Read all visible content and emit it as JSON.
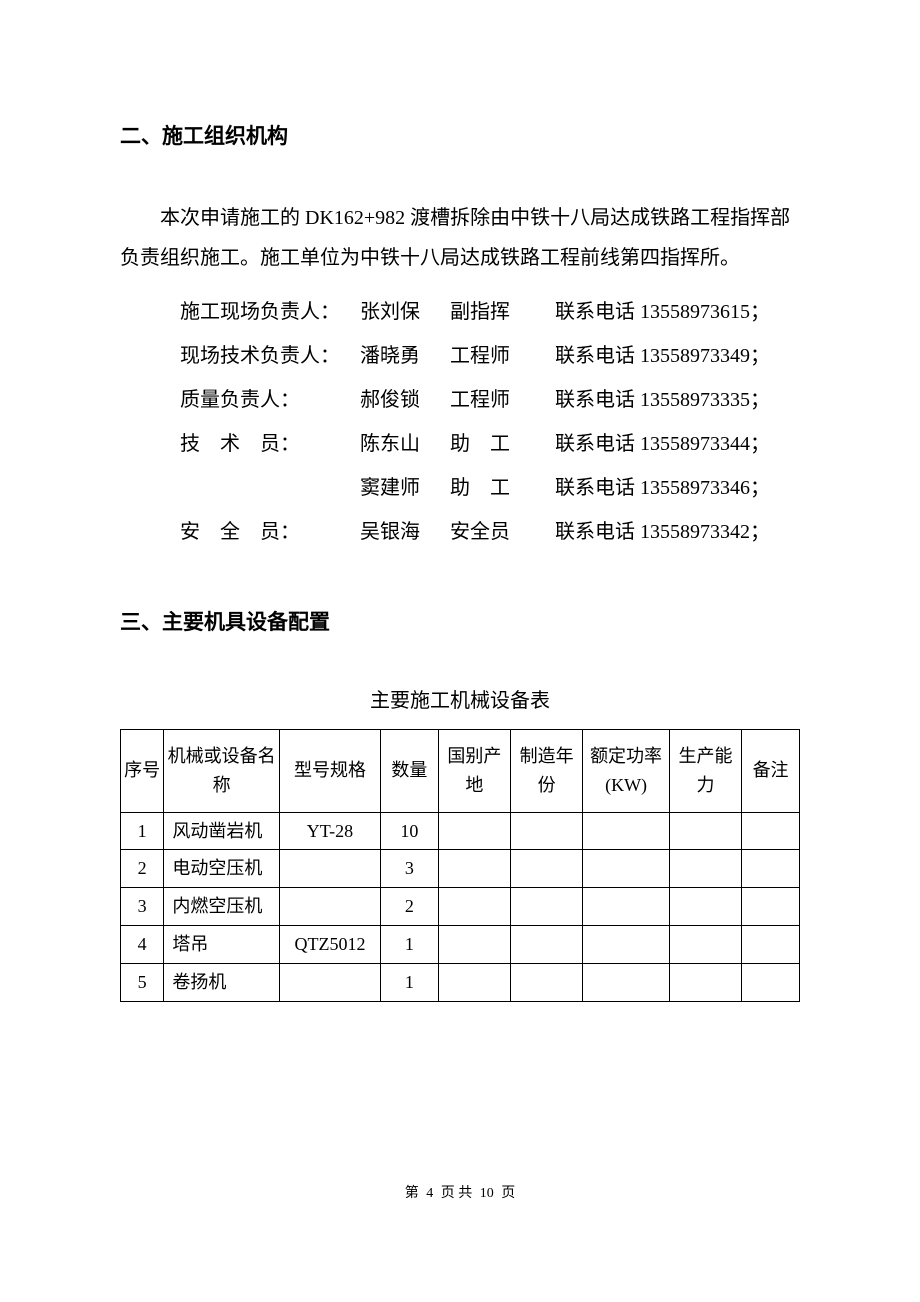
{
  "section2": {
    "heading": "二、施工组织机构",
    "intro": "本次申请施工的 DK162+982 渡槽拆除由中铁十八局达成铁路工程指挥部负责组织施工。施工单位为中铁十八局达成铁路工程前线第四指挥所。",
    "personnel": [
      {
        "role": "施工现场负责人：",
        "name": "张刘保",
        "title": "副指挥",
        "phone": "联系电话 13558973615；"
      },
      {
        "role": "现场技术负责人：",
        "name": "潘晓勇",
        "title": "工程师",
        "phone": "联系电话 13558973349；"
      },
      {
        "role": "质量负责人：",
        "name": "郝俊锁",
        "title": "工程师",
        "phone": "联系电话 13558973335；"
      },
      {
        "role": "技　术　员：",
        "name": "陈东山",
        "title": "助　工",
        "phone": "联系电话 13558973344；"
      },
      {
        "role": "",
        "name": "窦建师",
        "title": "助　工",
        "phone": "联系电话 13558973346；"
      },
      {
        "role": "安　全　员：",
        "name": "吴银海",
        "title": "安全员",
        "phone": "联系电话 13558973342；"
      }
    ]
  },
  "section3": {
    "heading": "三、主要机具设备配置",
    "table_title": "主要施工机械设备表",
    "columns": {
      "seq": "序号",
      "name": "机械或设备名称",
      "model": "型号规格",
      "qty": "数量",
      "origin": "国别产地",
      "year": "制造年份",
      "power": "额定功率(KW)",
      "capacity": "生产能力",
      "remark": "备注"
    },
    "rows": [
      {
        "seq": "1",
        "name": "风动凿岩机",
        "model": "YT-28",
        "qty": "10",
        "origin": "",
        "year": "",
        "power": "",
        "capacity": "",
        "remark": ""
      },
      {
        "seq": "2",
        "name": "电动空压机",
        "model": "",
        "qty": "3",
        "origin": "",
        "year": "",
        "power": "",
        "capacity": "",
        "remark": ""
      },
      {
        "seq": "3",
        "name": "内燃空压机",
        "model": "",
        "qty": "2",
        "origin": "",
        "year": "",
        "power": "",
        "capacity": "",
        "remark": ""
      },
      {
        "seq": "4",
        "name": "塔吊",
        "model": "QTZ5012",
        "qty": "1",
        "origin": "",
        "year": "",
        "power": "",
        "capacity": "",
        "remark": ""
      },
      {
        "seq": "5",
        "name": "卷扬机",
        "model": "",
        "qty": "1",
        "origin": "",
        "year": "",
        "power": "",
        "capacity": "",
        "remark": ""
      }
    ]
  },
  "footer": {
    "page_current": "4",
    "page_total": "10",
    "prefix": "第",
    "mid": "页 共",
    "suffix": "页"
  }
}
